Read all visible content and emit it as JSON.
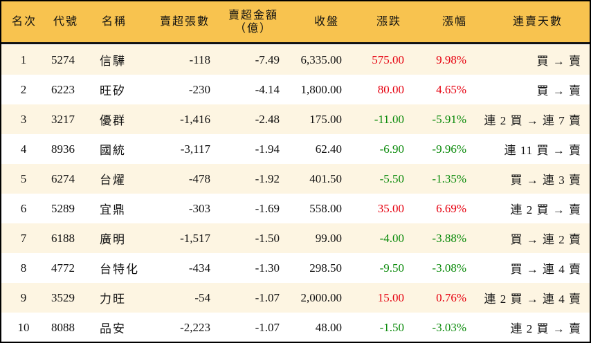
{
  "headers": [
    "名次",
    "代號",
    "名稱",
    "賣超張數",
    "賣超金額（億）",
    "收盤",
    "漲跌",
    "漲幅",
    "連賣天數"
  ],
  "header_amount_line1": "賣超金額",
  "header_amount_line2": "（億）",
  "colors": {
    "header_bg": "#F8C34F",
    "row_alt": "#FDF5E2",
    "up": "#e6000f",
    "down": "#0a8a0a"
  },
  "rows": [
    {
      "rank": "1",
      "code": "5274",
      "name": "信驊",
      "shares": "-118",
      "amount": "-7.49",
      "close": "6,335.00",
      "change": "575.00",
      "pct": "9.98%",
      "streak": "買 → 賣",
      "dir": "up"
    },
    {
      "rank": "2",
      "code": "6223",
      "name": "旺矽",
      "shares": "-230",
      "amount": "-4.14",
      "close": "1,800.00",
      "change": "80.00",
      "pct": "4.65%",
      "streak": "買 → 賣",
      "dir": "up"
    },
    {
      "rank": "3",
      "code": "3217",
      "name": "優群",
      "shares": "-1,416",
      "amount": "-2.48",
      "close": "175.00",
      "change": "-11.00",
      "pct": "-5.91%",
      "streak": "連 2 買 → 連 7 賣",
      "dir": "dn"
    },
    {
      "rank": "4",
      "code": "8936",
      "name": "國統",
      "shares": "-3,117",
      "amount": "-1.94",
      "close": "62.40",
      "change": "-6.90",
      "pct": "-9.96%",
      "streak": "連 11 買 → 賣",
      "dir": "dn"
    },
    {
      "rank": "5",
      "code": "6274",
      "name": "台燿",
      "shares": "-478",
      "amount": "-1.92",
      "close": "401.50",
      "change": "-5.50",
      "pct": "-1.35%",
      "streak": "買 → 連 3 賣",
      "dir": "dn"
    },
    {
      "rank": "6",
      "code": "5289",
      "name": "宜鼎",
      "shares": "-303",
      "amount": "-1.69",
      "close": "558.00",
      "change": "35.00",
      "pct": "6.69%",
      "streak": "連 2 買 → 賣",
      "dir": "up"
    },
    {
      "rank": "7",
      "code": "6188",
      "name": "廣明",
      "shares": "-1,517",
      "amount": "-1.50",
      "close": "99.00",
      "change": "-4.00",
      "pct": "-3.88%",
      "streak": "買 → 連 2 賣",
      "dir": "dn"
    },
    {
      "rank": "8",
      "code": "4772",
      "name": "台特化",
      "shares": "-434",
      "amount": "-1.30",
      "close": "298.50",
      "change": "-9.50",
      "pct": "-3.08%",
      "streak": "買 → 連 4 賣",
      "dir": "dn"
    },
    {
      "rank": "9",
      "code": "3529",
      "name": "力旺",
      "shares": "-54",
      "amount": "-1.07",
      "close": "2,000.00",
      "change": "15.00",
      "pct": "0.76%",
      "streak": "連 2 買 → 連 4 賣",
      "dir": "up"
    },
    {
      "rank": "10",
      "code": "8088",
      "name": "品安",
      "shares": "-2,223",
      "amount": "-1.07",
      "close": "48.00",
      "change": "-1.50",
      "pct": "-3.03%",
      "streak": "連 2 買 → 賣",
      "dir": "dn"
    }
  ]
}
